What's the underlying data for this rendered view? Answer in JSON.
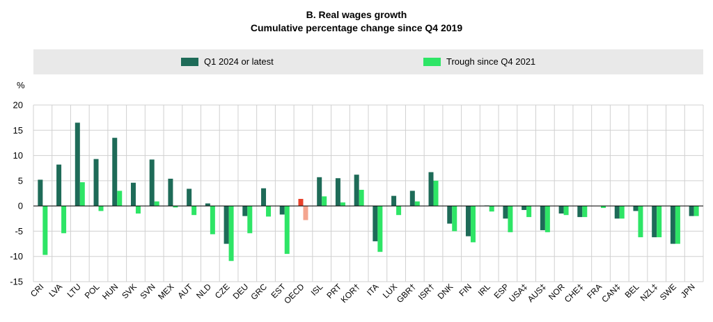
{
  "chart_data": {
    "type": "bar",
    "title": "B. Real wages growth",
    "subtitle": "Cumulative percentage change since Q4 2019",
    "ylabel": "%",
    "xlabel": "",
    "ylim": [
      -15,
      20
    ],
    "yticks": [
      -15,
      -10,
      -5,
      0,
      5,
      10,
      15,
      20
    ],
    "grid": true,
    "legend_position": "top",
    "categories": [
      "CRI",
      "LVA",
      "LTU",
      "POL",
      "HUN",
      "SVK",
      "SVN",
      "MEX",
      "AUT",
      "NLD",
      "CZE",
      "DEU",
      "GRC",
      "EST",
      "OECD",
      "ISL",
      "PRT",
      "KOR†",
      "ITA",
      "LUX",
      "GBR†",
      "ISR†",
      "DNK",
      "FIN",
      "IRL",
      "ESP",
      "USA‡",
      "AUS‡",
      "NOR",
      "CHE‡",
      "FRA",
      "CAN‡",
      "BEL",
      "NZL‡",
      "SWE",
      "JPN"
    ],
    "highlight_category": "OECD",
    "series": [
      {
        "name": "Q1 2024 or latest",
        "color": "#1e6b58",
        "highlight_color": "#e8412a",
        "values": [
          5.2,
          8.2,
          16.5,
          9.3,
          13.5,
          4.6,
          9.2,
          5.4,
          3.4,
          0.5,
          -7.5,
          -2.0,
          3.5,
          -1.7,
          1.4,
          5.7,
          5.5,
          6.2,
          -7.0,
          2.0,
          3.0,
          6.7,
          -3.5,
          -6.0,
          0.1,
          -2.5,
          -0.8,
          -4.8,
          -1.5,
          -2.2,
          0.0,
          -2.5,
          -1.0,
          -6.2,
          -7.5,
          -2.0
        ]
      },
      {
        "name": "Trough since Q4 2021",
        "color": "#2ee566",
        "highlight_color": "#f4a58f",
        "values": [
          -9.7,
          -5.4,
          4.7,
          -1.0,
          3.0,
          -1.5,
          0.9,
          -0.3,
          -1.8,
          -5.6,
          -10.9,
          -5.4,
          -2.1,
          -9.5,
          -2.8,
          1.9,
          0.7,
          3.2,
          -9.1,
          -1.8,
          0.9,
          5.0,
          -5.0,
          -7.2,
          -1.1,
          -5.2,
          -2.2,
          -5.2,
          -1.8,
          -2.2,
          -0.4,
          -2.5,
          -6.2,
          -6.2,
          -7.5,
          -2.0
        ]
      }
    ]
  },
  "colors": {
    "grid": "#d0d0d0",
    "axis": "#000000",
    "legend_bg": "#e9e9e9"
  }
}
